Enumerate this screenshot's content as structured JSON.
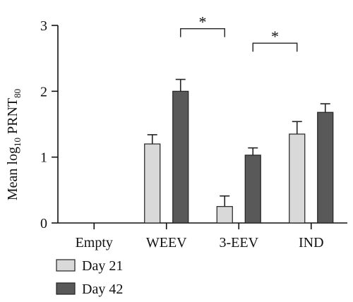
{
  "chart_data": {
    "type": "bar",
    "categories": [
      "Empty",
      "WEEV",
      "3-EEV",
      "IND"
    ],
    "ylabel": {
      "main": "Mean log",
      "sub1": "10",
      "mid": " PRNT",
      "sub2": "80"
    },
    "ylim": [
      0,
      3
    ],
    "yticks": [
      "0",
      "1",
      "2",
      "3"
    ],
    "legend_position": "bottom-left",
    "series": [
      {
        "name": "Day 21",
        "color": "#d9d9d9",
        "values": [
          null,
          1.2,
          0.25,
          1.35
        ],
        "errors": [
          null,
          0.14,
          0.16,
          0.19
        ]
      },
      {
        "name": "Day 42",
        "color": "#595959",
        "values": [
          null,
          2.0,
          1.03,
          1.68
        ],
        "errors": [
          null,
          0.18,
          0.11,
          0.13
        ]
      }
    ],
    "significance": [
      {
        "label": "*",
        "from": "WEEV",
        "to": "3-EEV",
        "y": 2.95
      },
      {
        "label": "*",
        "from": "3-EEV",
        "to": "IND",
        "y": 2.73
      }
    ]
  }
}
